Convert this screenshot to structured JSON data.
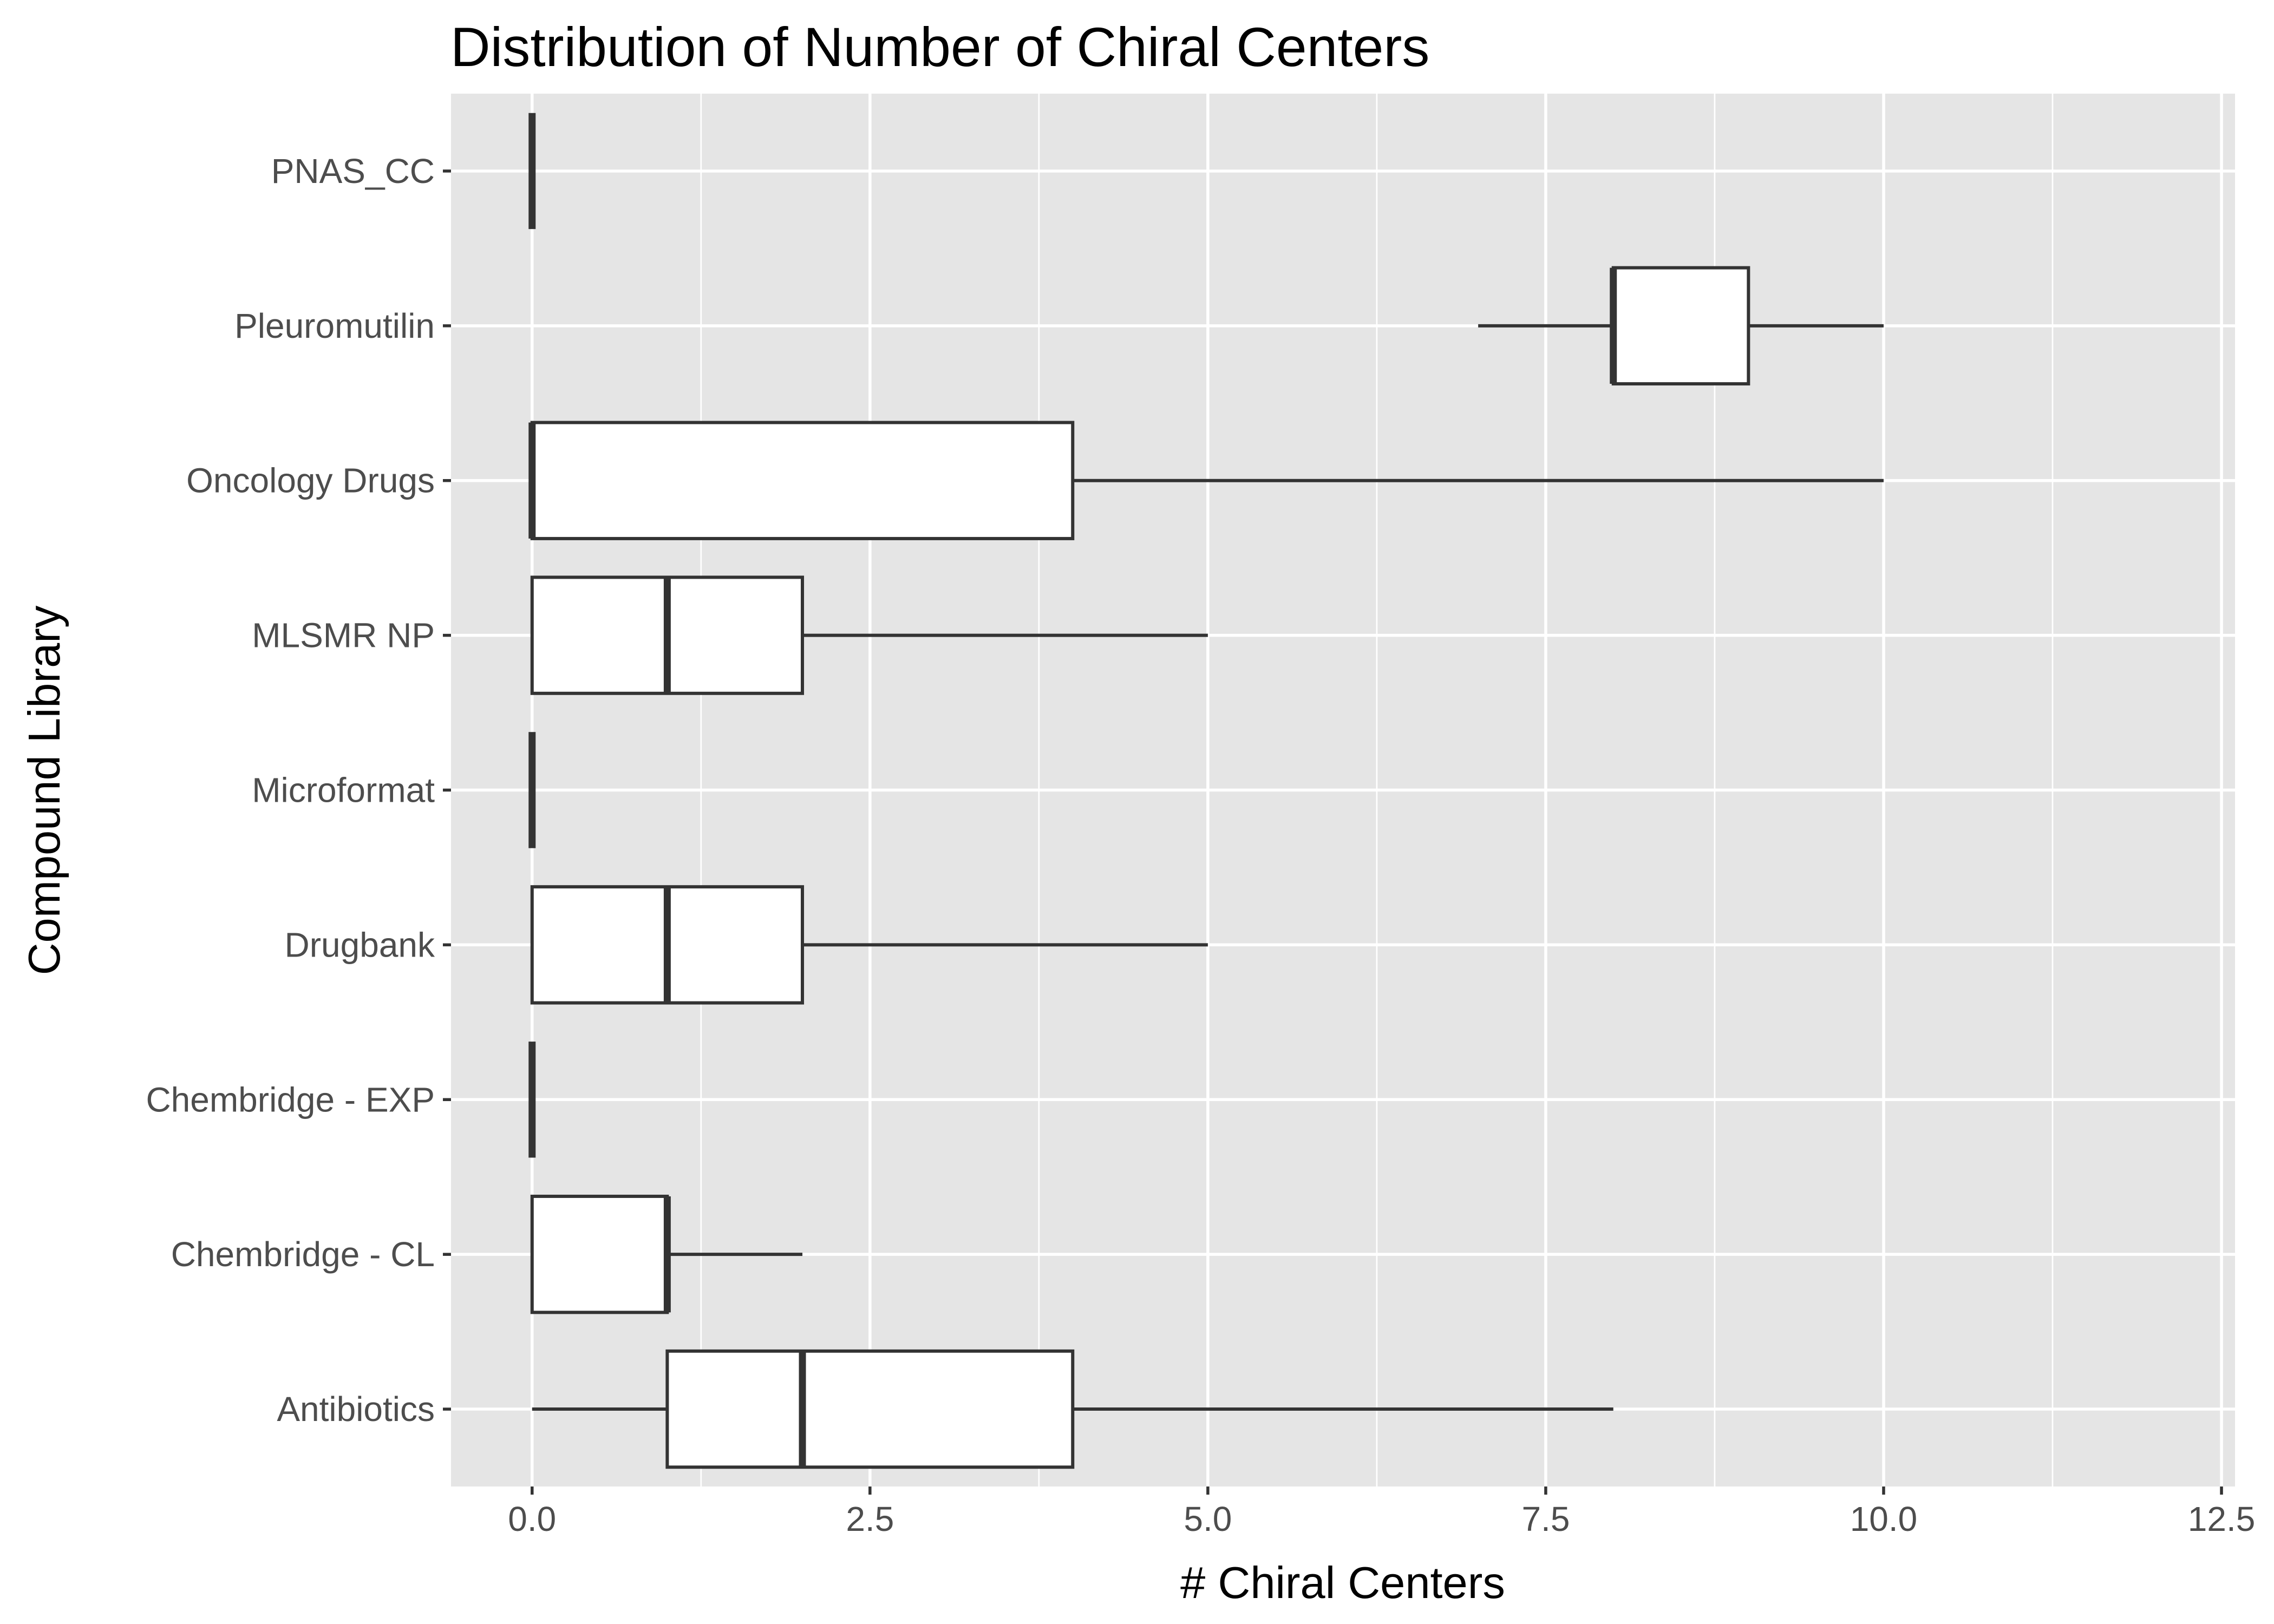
{
  "chart_data": {
    "type": "boxplot",
    "orientation": "horizontal",
    "title": "Distribution of Number of Chiral Centers",
    "xlabel": "# Chiral Centers",
    "ylabel": "Compound Library",
    "xlim": [
      -0.6,
      12.6
    ],
    "x_ticks": [
      0,
      2.5,
      5,
      7.5,
      10,
      12.5
    ],
    "x_tick_labels": [
      "0.0",
      "2.5",
      "5.0",
      "7.5",
      "10.0",
      "12.5"
    ],
    "grid": true,
    "legend": "none",
    "colors": {
      "panel": "#e5e5e5",
      "box_fill": "#ffffff",
      "box_stroke": "#333333",
      "text": "#4d4d4d"
    },
    "categories": [
      "Antibiotics",
      "Chembridge - CL",
      "Chembridge - EXP",
      "Drugbank",
      "Microformat",
      "MLSMR NP",
      "Oncology Drugs",
      "Pleuromutilin",
      "PNAS_CC"
    ],
    "series": [
      {
        "category": "Antibiotics",
        "min": 0,
        "q1": 1,
        "median": 2,
        "q3": 4,
        "max": 8
      },
      {
        "category": "Chembridge - CL",
        "min": 0,
        "q1": 0,
        "median": 1,
        "q3": 1,
        "max": 2
      },
      {
        "category": "Chembridge - EXP",
        "min": 0,
        "q1": 0,
        "median": 0,
        "q3": 0,
        "max": 0
      },
      {
        "category": "Drugbank",
        "min": 0,
        "q1": 0,
        "median": 1,
        "q3": 2,
        "max": 5
      },
      {
        "category": "Microformat",
        "min": 0,
        "q1": 0,
        "median": 0,
        "q3": 0,
        "max": 0
      },
      {
        "category": "MLSMR NP",
        "min": 0,
        "q1": 0,
        "median": 1,
        "q3": 2,
        "max": 5
      },
      {
        "category": "Oncology Drugs",
        "min": 0,
        "q1": 0,
        "median": 0,
        "q3": 4,
        "max": 10
      },
      {
        "category": "Pleuromutilin",
        "min": 7,
        "q1": 8,
        "median": 8,
        "q3": 9,
        "max": 10
      },
      {
        "category": "PNAS_CC",
        "min": 0,
        "q1": 0,
        "median": 0,
        "q3": 0,
        "max": 0
      }
    ]
  }
}
